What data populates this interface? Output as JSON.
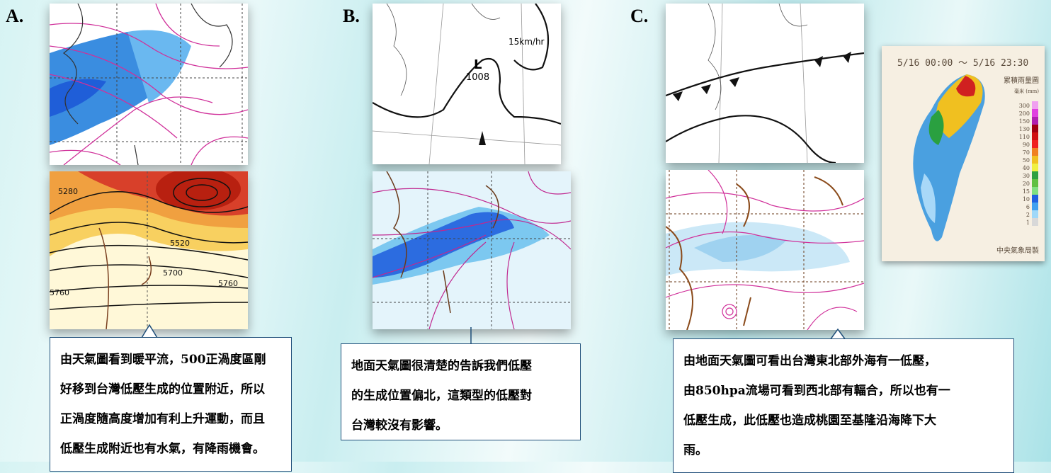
{
  "panels": [
    {
      "label": "A.",
      "map_labels": [
        "5280",
        "5520",
        "5700",
        "5760",
        "5760"
      ],
      "caption": [
        "由天氣圖看到暖平流，500正渦度區剛",
        "好移到台灣低壓生成的位置附近，所以",
        "正渦度隨高度增加有利上升運動，而且",
        "低壓生成附近也有水氣，有降雨機會。"
      ]
    },
    {
      "label": "B.",
      "map_labels": [
        "L",
        "1008",
        "15km/hr"
      ],
      "caption": [
        "地面天氣圖很清楚的告訴我們低壓",
        "的生成位置偏北，這類型的低壓對",
        "台灣較沒有影響。"
      ]
    },
    {
      "label": "C.",
      "map_labels": [],
      "caption": [
        "由地面天氣圖可看出台灣東北部外海有一低壓，",
        "由850hpa流場可看到西北部有輻合，所以也有一",
        "低壓生成，此低壓也造成桃園至基隆沿海降下大",
        "雨。"
      ]
    }
  ],
  "rain_map": {
    "title": "5/16 00:00 ～ 5/16 23:30",
    "name": "累積雨量圖",
    "unit": "毫米 (mm)",
    "legend": [
      300,
      200,
      150,
      130,
      110,
      90,
      70,
      50,
      40,
      30,
      20,
      15,
      10,
      6,
      2,
      1
    ],
    "credit": "中央氣象局製"
  }
}
